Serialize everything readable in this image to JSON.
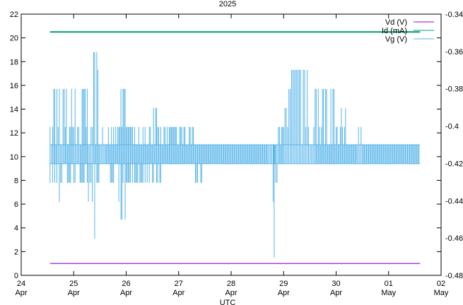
{
  "chart_data": {
    "type": "line",
    "title": "2025",
    "xlabel": "UTC",
    "ylabel_left": "",
    "ylabel_right": "",
    "x_ticks": [
      {
        "day": 24,
        "top": "24",
        "bottom": "Apr"
      },
      {
        "day": 25,
        "top": "25",
        "bottom": "Apr"
      },
      {
        "day": 26,
        "top": "26",
        "bottom": "Apr"
      },
      {
        "day": 27,
        "top": "27",
        "bottom": "Apr"
      },
      {
        "day": 28,
        "top": "28",
        "bottom": "Apr"
      },
      {
        "day": 29,
        "top": "29",
        "bottom": "Apr"
      },
      {
        "day": 30,
        "top": "30",
        "bottom": "Apr"
      },
      {
        "day": 31,
        "top": "01",
        "bottom": "May"
      },
      {
        "day": 32,
        "top": "02",
        "bottom": "May"
      }
    ],
    "xlim": [
      24,
      32
    ],
    "y_left": {
      "lim": [
        0,
        22
      ],
      "ticks": [
        "0",
        "2",
        "4",
        "6",
        "8",
        "10",
        "12",
        "14",
        "16",
        "18",
        "20",
        "22"
      ]
    },
    "y_right": {
      "lim": [
        -0.48,
        -0.34
      ],
      "ticks": [
        "-0.48",
        "-0.46",
        "-0.44",
        "-0.42",
        "-0.4",
        "-0.38",
        "-0.36",
        "-0.34"
      ]
    },
    "legend_placement": "top-right",
    "series": [
      {
        "name": "Vd (V)",
        "color": "#9400d3",
        "axis": "left",
        "x": [
          24.55,
          31.6
        ],
        "y": [
          1.0,
          1.0
        ]
      },
      {
        "name": "Id (mA)",
        "color": "#009e73",
        "axis": "left",
        "x": [
          24.55,
          31.6
        ],
        "y": [
          20.5,
          20.5
        ]
      },
      {
        "name": "Vg (V)",
        "color": "#56b4e9",
        "axis": "left",
        "style": "noisy",
        "x": [
          24.55,
          24.6,
          24.68,
          24.75,
          24.82,
          24.9,
          24.98,
          25.05,
          25.12,
          25.2,
          25.28,
          25.33,
          25.38,
          25.42,
          25.46,
          25.5,
          25.55,
          25.6,
          25.7,
          25.8,
          25.9,
          26.0,
          26.1,
          26.2,
          26.3,
          26.4,
          26.5,
          26.6,
          26.7,
          26.8,
          26.9,
          27.0,
          27.1,
          27.2,
          27.3,
          27.4,
          27.5,
          27.6,
          27.7,
          27.8,
          27.9,
          28.0,
          28.1,
          28.2,
          28.3,
          28.4,
          28.5,
          28.6,
          28.7,
          28.75,
          28.8,
          28.82,
          28.85,
          28.9,
          29.0,
          29.05,
          29.1,
          29.15,
          29.2,
          29.25,
          29.3,
          29.35,
          29.4,
          29.45,
          29.5,
          29.55,
          29.6,
          29.7,
          29.8,
          29.9,
          30.0,
          30.1,
          30.2,
          30.3,
          30.4,
          30.45,
          30.5,
          30.6,
          30.7,
          30.8,
          30.9,
          31.0,
          31.1,
          31.2,
          31.3,
          31.4,
          31.5,
          31.6
        ],
        "y_low": [
          7.8,
          7.8,
          6.2,
          6.2,
          7.8,
          7.8,
          7.8,
          9.4,
          7.8,
          7.8,
          6.2,
          6.2,
          3.1,
          7.8,
          7.8,
          9.4,
          9.4,
          9.4,
          7.8,
          6.2,
          4.7,
          7.8,
          7.8,
          7.8,
          7.8,
          7.8,
          7.8,
          7.8,
          9.4,
          9.4,
          9.4,
          9.4,
          9.4,
          9.4,
          7.8,
          7.8,
          9.4,
          9.4,
          9.4,
          9.4,
          9.4,
          9.4,
          9.4,
          9.4,
          9.4,
          9.4,
          9.4,
          9.4,
          9.4,
          7.8,
          6.2,
          1.5,
          7.8,
          9.4,
          9.4,
          9.4,
          9.4,
          9.4,
          9.4,
          9.4,
          9.4,
          9.4,
          9.4,
          9.4,
          9.4,
          9.4,
          9.4,
          9.4,
          9.4,
          9.4,
          9.4,
          9.4,
          9.4,
          9.4,
          9.4,
          9.4,
          9.4,
          9.4,
          9.4,
          9.4,
          9.4,
          9.4,
          9.4,
          9.4,
          9.4,
          9.4,
          9.4,
          9.4
        ],
        "y_high": [
          15.7,
          15.7,
          15.7,
          15.7,
          15.7,
          15.7,
          15.7,
          14.1,
          15.7,
          15.7,
          17.3,
          18.8,
          18.8,
          18.8,
          17.3,
          15.7,
          12.5,
          12.5,
          12.5,
          12.5,
          15.7,
          12.5,
          12.5,
          12.5,
          12.5,
          12.5,
          14.1,
          12.5,
          12.5,
          12.5,
          12.5,
          12.5,
          12.5,
          12.5,
          11.0,
          11.0,
          11.0,
          11.0,
          11.0,
          11.0,
          11.0,
          11.0,
          11.0,
          11.0,
          11.0,
          11.0,
          11.0,
          11.0,
          11.0,
          11.0,
          11.0,
          11.0,
          11.0,
          12.5,
          14.1,
          14.1,
          15.7,
          17.3,
          17.3,
          17.3,
          17.3,
          17.3,
          17.3,
          17.3,
          15.7,
          15.7,
          15.7,
          15.7,
          15.7,
          15.7,
          15.7,
          14.1,
          11.0,
          11.0,
          12.5,
          17.3,
          11.0,
          11.0,
          11.0,
          11.0,
          11.0,
          11.0,
          11.0,
          11.0,
          11.0,
          11.0,
          11.0,
          11.0
        ]
      }
    ]
  }
}
